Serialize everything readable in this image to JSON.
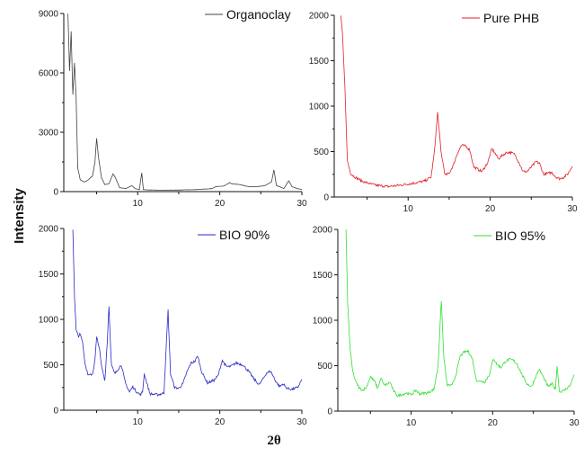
{
  "chart_data": {
    "type": "line",
    "figure": {
      "shared_ylabel": "Intensity",
      "shared_xlabel": "2θ"
    },
    "panels": [
      {
        "id": "organoclay",
        "legend": "Organoclay",
        "color": "#404040",
        "xlim": [
          1,
          30
        ],
        "ylim": [
          0,
          9000
        ],
        "xticks": [
          10,
          20,
          30
        ],
        "yticks": [
          0,
          3000,
          6000,
          9000
        ],
        "x": [
          1.5,
          1.7,
          1.9,
          2.1,
          2.3,
          2.5,
          2.7,
          3.0,
          3.5,
          4.0,
          4.5,
          4.8,
          5.0,
          5.2,
          5.6,
          6.0,
          6.5,
          7.0,
          7.3,
          7.8,
          8.5,
          9.3,
          9.7,
          10.2,
          10.5,
          10.7,
          11.5,
          13,
          15,
          17,
          19,
          19.5,
          20.5,
          21.2,
          21.5,
          22.5,
          23.5,
          24.5,
          25.5,
          26.3,
          26.6,
          26.9,
          27.3,
          27.8,
          28.4,
          28.8,
          29.5,
          30
        ],
        "values": [
          9000,
          6100,
          8100,
          4900,
          6500,
          4800,
          1200,
          600,
          480,
          600,
          800,
          1500,
          2700,
          1800,
          700,
          350,
          400,
          900,
          700,
          200,
          150,
          300,
          150,
          100,
          950,
          100,
          80,
          70,
          80,
          100,
          150,
          250,
          280,
          450,
          400,
          350,
          250,
          250,
          300,
          500,
          1100,
          300,
          250,
          150,
          550,
          250,
          150,
          100
        ]
      },
      {
        "id": "pure-phb",
        "legend": "Pure PHB",
        "color": "#e0202a",
        "xlim": [
          1,
          30
        ],
        "ylim": [
          0,
          2000
        ],
        "xticks": [
          10,
          20,
          30
        ],
        "yticks": [
          0,
          500,
          1000,
          1500,
          2000
        ],
        "x": [
          1.8,
          2.0,
          2.3,
          2.6,
          3.0,
          3.5,
          4.5,
          6,
          7.5,
          9,
          10.5,
          12,
          12.8,
          13.2,
          13.6,
          14.0,
          14.5,
          15,
          15.5,
          16,
          16.5,
          17,
          17.5,
          18,
          19,
          19.7,
          20.2,
          20.6,
          21,
          21.5,
          22,
          22.5,
          23,
          23.5,
          24,
          24.5,
          25,
          25.6,
          26,
          26.5,
          27,
          27.5,
          28,
          28.5,
          29,
          29.5,
          30
        ],
        "values": [
          2000,
          1800,
          1200,
          400,
          260,
          220,
          170,
          130,
          115,
          130,
          150,
          175,
          220,
          500,
          930,
          500,
          240,
          260,
          350,
          480,
          570,
          560,
          520,
          330,
          280,
          380,
          530,
          480,
          420,
          460,
          490,
          490,
          470,
          380,
          280,
          280,
          330,
          390,
          370,
          250,
          260,
          270,
          220,
          200,
          220,
          260,
          340
        ]
      },
      {
        "id": "bio-90",
        "legend": "BIO 90%",
        "color": "#2a2ac8",
        "xlim": [
          1,
          30
        ],
        "ylim": [
          0,
          2000
        ],
        "xticks": [
          10,
          20,
          30
        ],
        "yticks": [
          0,
          500,
          1000,
          1500,
          2000
        ],
        "x": [
          2.1,
          2.3,
          2.5,
          2.8,
          3.0,
          3.3,
          3.6,
          4.0,
          4.5,
          4.8,
          5.0,
          5.3,
          5.6,
          6.0,
          6.3,
          6.5,
          6.8,
          7.2,
          7.6,
          8.0,
          8.5,
          9.0,
          9.4,
          9.8,
          10.3,
          10.6,
          10.8,
          11.5,
          12.5,
          13.2,
          13.7,
          14.0,
          14.5,
          15,
          15.5,
          16,
          16.5,
          17.0,
          17.3,
          17.8,
          18.5,
          19.3,
          19.8,
          20.3,
          20.8,
          21.3,
          22,
          22.8,
          23.5,
          24.2,
          24.8,
          25.3,
          25.7,
          26.2,
          26.8,
          27.3,
          27.7,
          28.2,
          28.8,
          29.5,
          30
        ],
        "values": [
          2000,
          1250,
          900,
          800,
          850,
          750,
          500,
          380,
          400,
          550,
          800,
          700,
          480,
          330,
          750,
          1150,
          500,
          400,
          450,
          500,
          300,
          200,
          260,
          210,
          170,
          200,
          400,
          180,
          170,
          190,
          1100,
          400,
          250,
          240,
          290,
          420,
          520,
          540,
          600,
          420,
          300,
          330,
          380,
          550,
          480,
          480,
          520,
          500,
          430,
          340,
          280,
          350,
          410,
          430,
          320,
          260,
          290,
          240,
          230,
          250,
          340
        ]
      },
      {
        "id": "bio-95",
        "legend": "BIO 95%",
        "color": "#30e030",
        "xlim": [
          1,
          30
        ],
        "ylim": [
          0,
          2000
        ],
        "xticks": [
          10,
          20,
          30
        ],
        "yticks": [
          0,
          500,
          1000,
          1500,
          2000
        ],
        "x": [
          2.0,
          2.2,
          2.5,
          2.8,
          3.2,
          3.6,
          4.0,
          4.5,
          5.0,
          5.5,
          5.9,
          6.3,
          6.6,
          7.0,
          7.4,
          7.8,
          8.3,
          8.8,
          9.4,
          10,
          10.6,
          11,
          12,
          12.8,
          13.3,
          13.7,
          14.0,
          14.4,
          15,
          15.5,
          16,
          16.5,
          17,
          17.5,
          18,
          19,
          19.6,
          20.1,
          20.5,
          21,
          21.5,
          22,
          22.5,
          23,
          23.5,
          24.2,
          24.8,
          25.3,
          25.7,
          26.2,
          26.8,
          27.3,
          27.7,
          27.9,
          28.2,
          28.8,
          29.5,
          30
        ],
        "values": [
          2000,
          1200,
          700,
          450,
          320,
          260,
          230,
          260,
          380,
          330,
          250,
          370,
          290,
          290,
          320,
          230,
          170,
          180,
          200,
          180,
          230,
          190,
          200,
          240,
          500,
          1220,
          600,
          290,
          280,
          400,
          600,
          650,
          660,
          580,
          340,
          320,
          400,
          580,
          520,
          480,
          540,
          570,
          560,
          520,
          420,
          300,
          270,
          380,
          460,
          380,
          270,
          300,
          240,
          500,
          210,
          230,
          280,
          400
        ]
      }
    ]
  }
}
